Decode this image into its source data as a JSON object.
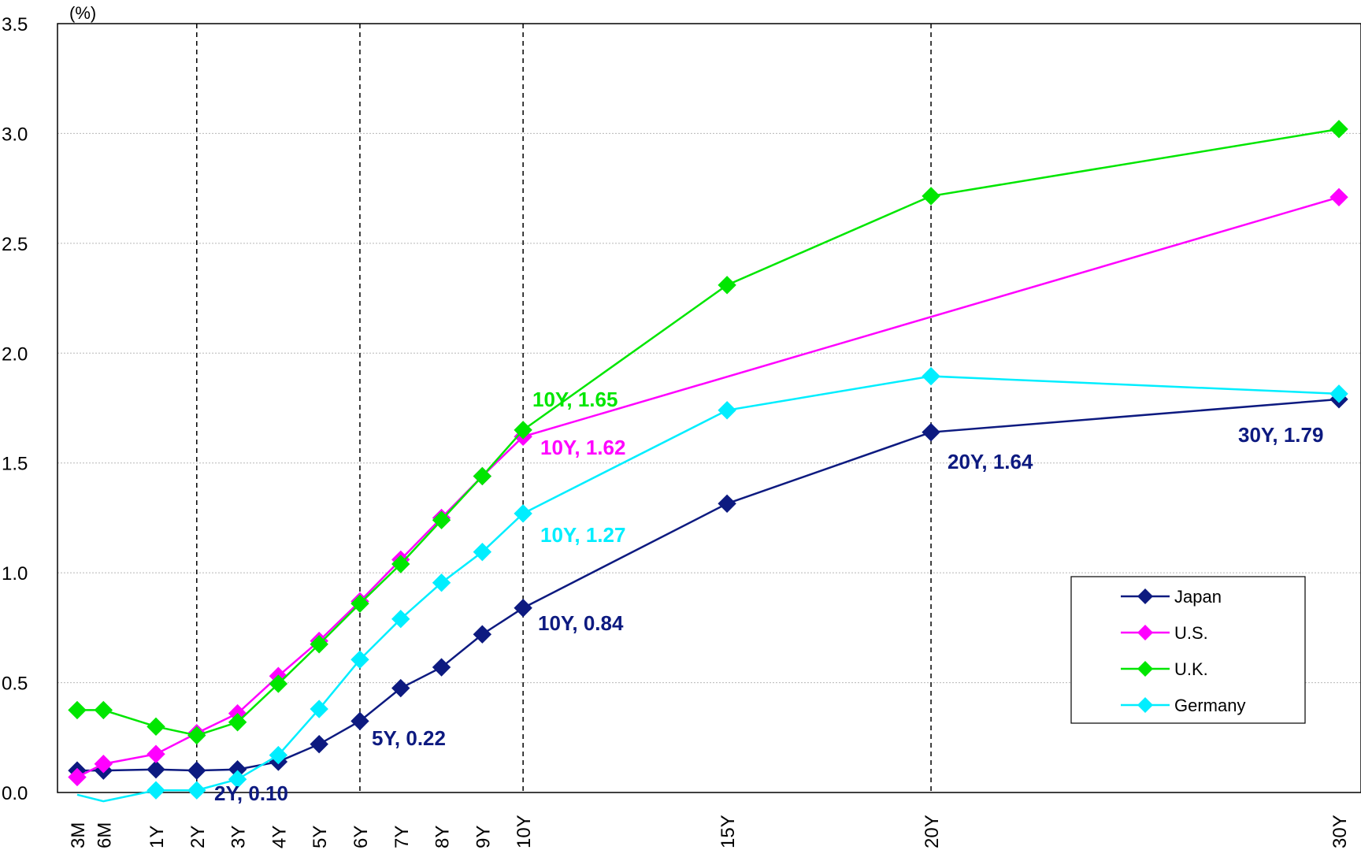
{
  "chart_data": {
    "type": "line",
    "title": "",
    "xlabel": "",
    "ylabel": "(%)",
    "ylim": [
      0,
      3.5
    ],
    "yticks": [
      "0.0",
      "0.5",
      "1.0",
      "1.5",
      "2.0",
      "2.5",
      "3.0",
      "3.5"
    ],
    "x": [
      "3M",
      "6M",
      "1Y",
      "2Y",
      "3Y",
      "4Y",
      "5Y",
      "6Y",
      "7Y",
      "8Y",
      "9Y",
      "10Y",
      "15Y",
      "20Y",
      "30Y"
    ],
    "x_years": [
      0.25,
      0.5,
      1,
      2,
      3,
      4,
      5,
      6,
      7,
      8,
      9,
      10,
      15,
      20,
      30
    ],
    "grid": true,
    "dashed_reference_lines": [
      "2Y",
      "6Y",
      "10Y",
      "20Y"
    ],
    "legend_position": "bottom-right",
    "series": [
      {
        "name": "Japan",
        "color": "#0d1a80",
        "marker": "diamond",
        "values": [
          0.1,
          0.1,
          0.105,
          0.1,
          0.105,
          0.14,
          0.22,
          0.325,
          0.475,
          0.57,
          0.72,
          0.84,
          1.315,
          1.64,
          1.79
        ]
      },
      {
        "name": "U.S.",
        "color": "#ff00ff",
        "marker": "diamond",
        "values": [
          0.07,
          0.13,
          0.175,
          0.27,
          0.36,
          0.53,
          0.69,
          0.87,
          1.06,
          1.25,
          1.44,
          1.62,
          null,
          null,
          2.71
        ]
      },
      {
        "name": "U.K.",
        "color": "#00e600",
        "marker": "diamond",
        "values": [
          0.375,
          0.375,
          0.3,
          0.26,
          0.32,
          0.495,
          0.675,
          0.86,
          1.04,
          1.24,
          1.44,
          1.65,
          2.31,
          2.715,
          3.02
        ]
      },
      {
        "name": "Germany",
        "color": "#00eeff",
        "marker": "diamond",
        "markerless_points": [
          "3M",
          "6M"
        ],
        "values": [
          -0.01,
          -0.04,
          0.01,
          0.01,
          0.06,
          0.17,
          0.38,
          0.605,
          0.79,
          0.955,
          1.095,
          1.27,
          1.74,
          1.895,
          1.815
        ]
      }
    ],
    "annotations": [
      {
        "text": "10Y, 1.65",
        "series": "U.K."
      },
      {
        "text": "10Y, 1.62",
        "series": "U.S."
      },
      {
        "text": "10Y, 1.27",
        "series": "Germany"
      },
      {
        "text": "10Y, 0.84",
        "series": "Japan"
      },
      {
        "text": "5Y, 0.22",
        "series": "Japan"
      },
      {
        "text": "2Y, 0.10",
        "series": "Japan"
      },
      {
        "text": "20Y, 1.64",
        "series": "Japan"
      },
      {
        "text": "30Y, 1.79",
        "series": "Japan"
      }
    ]
  }
}
